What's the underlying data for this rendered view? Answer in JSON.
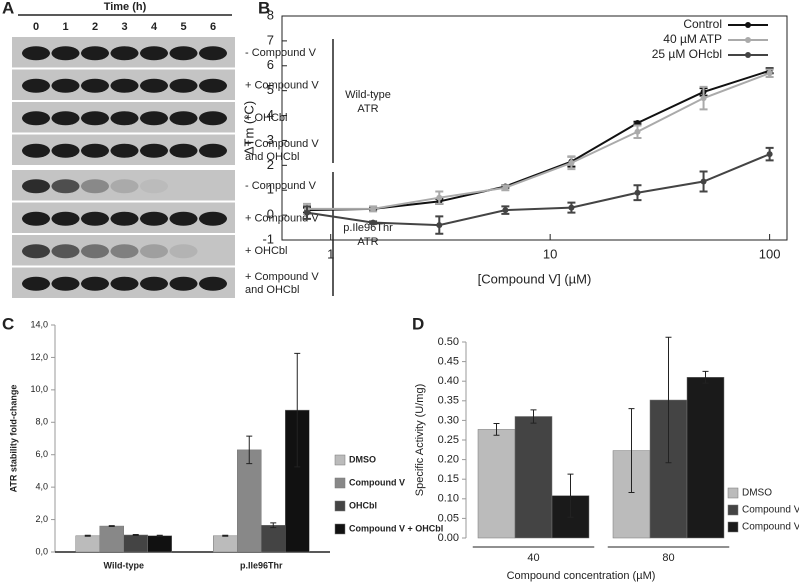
{
  "blot": {
    "label": "A",
    "time_label": "Time (h)",
    "times": [
      "0",
      "1",
      "2",
      "3",
      "4",
      "5",
      "6"
    ],
    "groups": [
      {
        "name": [
          "Wild-type",
          "ATR"
        ],
        "rows": [
          [
            "- Compound V"
          ],
          [
            "+ Compound V"
          ],
          [
            "+ OHCbl"
          ],
          [
            "+ Compound V",
            "and OHCbl"
          ]
        ]
      },
      {
        "name": [
          "p.Ile96Thr",
          "ATR"
        ],
        "rows": [
          [
            "- Compound V"
          ],
          [
            "+ Compound V"
          ],
          [
            "+ OHCbl"
          ],
          [
            "+ Compound V",
            "and OHCbl"
          ]
        ]
      }
    ]
  },
  "chart_data": [
    {
      "type": "line",
      "label": "B",
      "x_label": "[Compound V] (µM)",
      "y_label": "ΔTm (°C)",
      "x": [
        0.78,
        1.56,
        3.125,
        6.25,
        12.5,
        25,
        50,
        100
      ],
      "xscale": "log",
      "xlim": [
        0.6,
        120
      ],
      "xticks": [
        1,
        10,
        100
      ],
      "ylim": [
        -1,
        8
      ],
      "yticks": [
        -1,
        0,
        1,
        2,
        3,
        4,
        5,
        6,
        7,
        8
      ],
      "legend": "top-right",
      "series": [
        {
          "name": "Control",
          "color": "#111111",
          "values": [
            0.2,
            0.25,
            0.55,
            1.15,
            2.15,
            3.7,
            4.95,
            5.8
          ],
          "errors": [
            0.1,
            0.05,
            0.1,
            0.05,
            0.2,
            0.05,
            0.15,
            0.1
          ]
        },
        {
          "name": "40 µM ATP",
          "color": "#aaaaaa",
          "values": [
            0.25,
            0.25,
            0.7,
            1.1,
            2.1,
            3.35,
            4.7,
            5.7
          ],
          "errors": [
            0.2,
            0.1,
            0.25,
            0.1,
            0.25,
            0.25,
            0.45,
            0.15
          ]
        },
        {
          "name": "25 µM OHcbl",
          "color": "#444444",
          "values": [
            0.1,
            -0.3,
            -0.4,
            0.2,
            0.3,
            0.9,
            1.35,
            2.45
          ],
          "errors": [
            0.25,
            0.05,
            0.35,
            0.15,
            0.2,
            0.3,
            0.4,
            0.25
          ]
        }
      ]
    },
    {
      "type": "bar",
      "label": "C",
      "y_label": "ATR stability fold-change",
      "categories": [
        "Wild-type",
        "p.Ile96Thr"
      ],
      "ylim": [
        0,
        14
      ],
      "yticks": [
        {
          "value": 0,
          "label": "0,0"
        },
        {
          "value": 2,
          "label": "2,0"
        },
        {
          "value": 4,
          "label": "4,0"
        },
        {
          "value": 6,
          "label": "6,0"
        },
        {
          "value": 8,
          "label": "8,0"
        },
        {
          "value": 10,
          "label": "10,0"
        },
        {
          "value": 12,
          "label": "12,0"
        },
        {
          "value": 14,
          "label": "14,0"
        }
      ],
      "legend": "right",
      "series": [
        {
          "name": "DMSO",
          "color": "#bbbbbb",
          "values": [
            1.0,
            1.0
          ],
          "errors": [
            0.03,
            0.03
          ]
        },
        {
          "name": "Compound V",
          "color": "#888888",
          "values": [
            1.6,
            6.3
          ],
          "errors": [
            0.03,
            0.85
          ]
        },
        {
          "name": "OHCbl",
          "color": "#444444",
          "values": [
            1.05,
            1.65
          ],
          "errors": [
            0.03,
            0.15
          ]
        },
        {
          "name": "Compound V + OHCbl",
          "color": "#111111",
          "values": [
            1.0,
            8.75
          ],
          "errors": [
            0.03,
            3.5
          ]
        }
      ]
    },
    {
      "type": "bar",
      "label": "D",
      "x_label": "Compound concentration (µM)",
      "y_label": "Specific Activity (U/mg)",
      "categories": [
        "40",
        "80"
      ],
      "ylim": [
        0,
        0.5
      ],
      "yticks": [
        {
          "value": 0,
          "label": "0.00"
        },
        {
          "value": 0.05,
          "label": "0.05"
        },
        {
          "value": 0.1,
          "label": "0.10"
        },
        {
          "value": 0.15,
          "label": "0.15"
        },
        {
          "value": 0.2,
          "label": "0.20"
        },
        {
          "value": 0.25,
          "label": "0.25"
        },
        {
          "value": 0.3,
          "label": "0.30"
        },
        {
          "value": 0.35,
          "label": "0.35"
        },
        {
          "value": 0.4,
          "label": "0.40"
        },
        {
          "value": 0.45,
          "label": "0.45"
        },
        {
          "value": 0.5,
          "label": "0.50"
        }
      ],
      "legend": "right",
      "series": [
        {
          "name": "DMSO",
          "color": "#bbbbbb",
          "values": [
            0.277,
            0.223
          ],
          "errors": [
            0.015,
            0.107
          ]
        },
        {
          "name": "Compound V",
          "color": "#444444",
          "values": [
            0.31,
            0.352
          ],
          "errors": [
            0.017,
            0.16
          ]
        },
        {
          "name": "Compound VI",
          "color": "#1a1a1a",
          "values": [
            0.108,
            0.41
          ],
          "errors": [
            0.055,
            0.015
          ]
        }
      ]
    }
  ]
}
